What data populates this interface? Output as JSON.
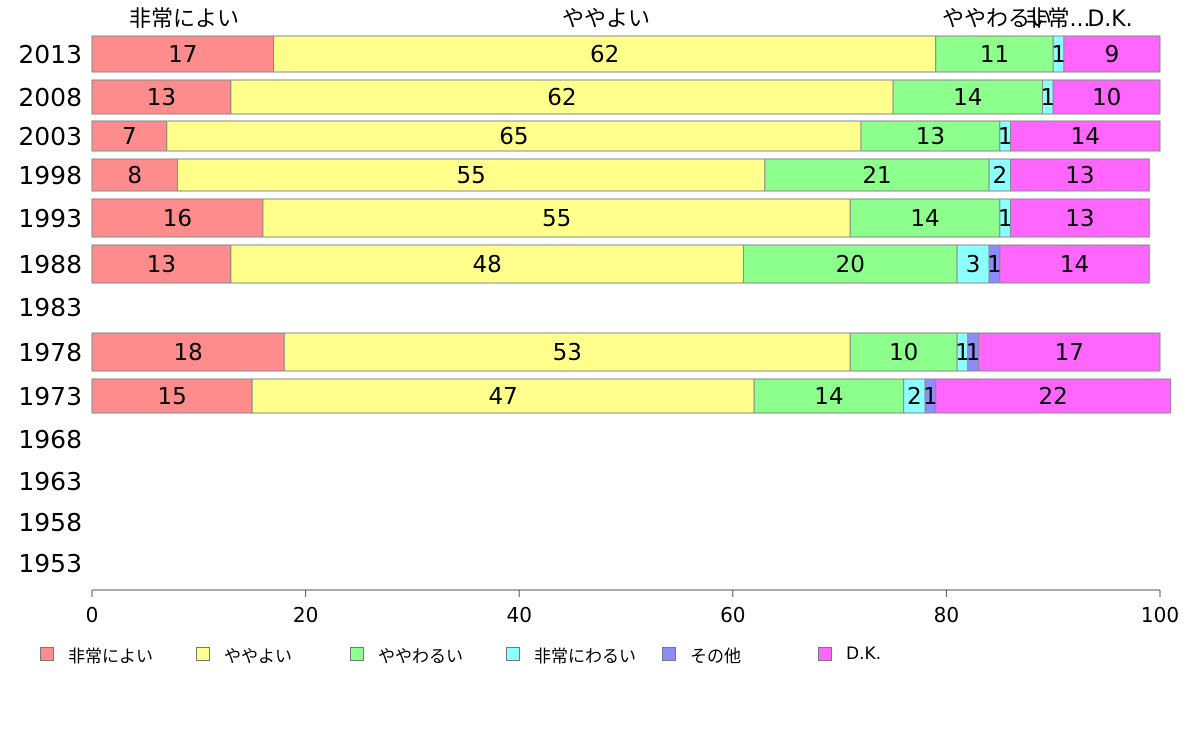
{
  "chart_data": {
    "type": "bar",
    "orientation": "horizontal",
    "stacked": true,
    "categories": [
      "2013",
      "2008",
      "2003",
      "1998",
      "1993",
      "1988",
      "1983",
      "1978",
      "1973",
      "1968",
      "1963",
      "1958",
      "1953"
    ],
    "series": [
      {
        "name": "非常によい",
        "color": "#ff8c8c",
        "values": [
          17,
          13,
          7,
          8,
          16,
          13,
          null,
          18,
          15,
          null,
          null,
          null,
          null
        ]
      },
      {
        "name": "ややよい",
        "color": "#ffff8c",
        "values": [
          62,
          62,
          65,
          55,
          55,
          48,
          null,
          53,
          47,
          null,
          null,
          null,
          null
        ]
      },
      {
        "name": "ややわるい",
        "color": "#8cff8c",
        "values": [
          11,
          14,
          13,
          21,
          14,
          20,
          null,
          10,
          14,
          null,
          null,
          null,
          null
        ]
      },
      {
        "name": "非常にわるい",
        "color": "#8cffff",
        "values": [
          1,
          1,
          1,
          2,
          1,
          3,
          null,
          1,
          2,
          null,
          null,
          null,
          null
        ]
      },
      {
        "name": "その他",
        "color": "#8c8cff",
        "values": [
          0,
          0,
          0,
          0,
          0,
          1,
          null,
          1,
          1,
          null,
          null,
          null,
          null
        ]
      },
      {
        "name": "D.K.",
        "color": "#ff66ff",
        "values": [
          9,
          10,
          14,
          13,
          13,
          14,
          null,
          17,
          22,
          null,
          null,
          null,
          null
        ]
      }
    ],
    "data_labels": [
      [
        "17",
        "62",
        "11",
        "1",
        "",
        "9"
      ],
      [
        "13",
        "62",
        "14",
        "1",
        "",
        "10"
      ],
      [
        "7",
        "65",
        "13",
        "1",
        "",
        "14"
      ],
      [
        "8",
        "55",
        "21",
        "2",
        "",
        "13"
      ],
      [
        "16",
        "55",
        "14",
        "1",
        "",
        "13"
      ],
      [
        "13",
        "48",
        "20",
        "3",
        "1",
        "14"
      ],
      [],
      [
        "18",
        "53",
        "10",
        "1",
        "1",
        "17"
      ],
      [
        "15",
        "47",
        "14",
        "2",
        "1",
        "22"
      ],
      [],
      [],
      [],
      []
    ],
    "top_labels": [
      "非常によい",
      "ややよい",
      "ややわるい",
      "非常...",
      "D.K."
    ],
    "x_ticks": [
      "0",
      "20",
      "40",
      "60",
      "80",
      "100"
    ],
    "xlim": [
      0,
      100
    ],
    "legend_position": "bottom",
    "grid": false
  }
}
